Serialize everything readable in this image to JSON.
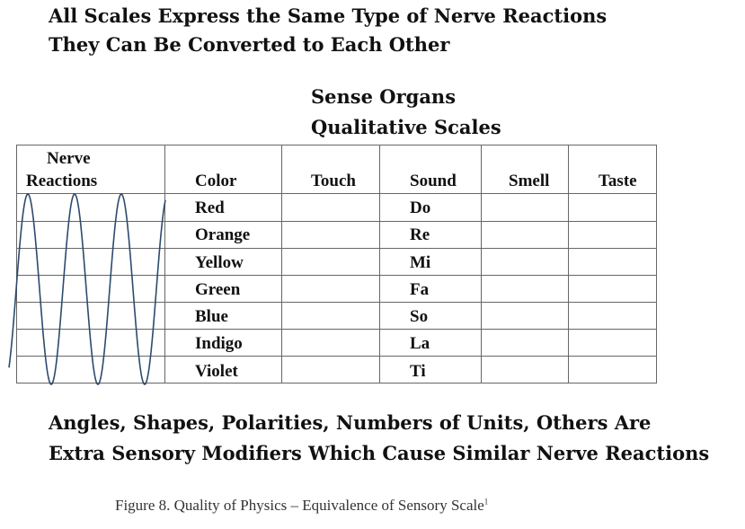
{
  "headings": [
    "All Scales Express the Same Type of Nerve Reactions",
    "They Can Be Converted to Each Other"
  ],
  "scales_title": [
    "Sense Organs",
    "Qualitative Scales"
  ],
  "table": {
    "nerve_header": [
      "Nerve",
      "Reactions"
    ],
    "columns": [
      "Color",
      "Touch",
      "Sound",
      "Smell",
      "Taste"
    ],
    "rows": [
      {
        "color": "Red",
        "sound": "Do"
      },
      {
        "color": "Orange",
        "sound": "Re"
      },
      {
        "color": "Yellow",
        "sound": "Mi"
      },
      {
        "color": "Green",
        "sound": "Fa"
      },
      {
        "color": "Blue",
        "sound": "So"
      },
      {
        "color": "Indigo",
        "sound": "La"
      },
      {
        "color": "Violet",
        "sound": "Ti"
      }
    ]
  },
  "wave_color": "#2c4a6e",
  "footer": [
    "Angles, Shapes, Polarities, Numbers of Units, Others Are",
    "Extra Sensory Modifiers Which Cause Similar Nerve Reactions"
  ],
  "caption": "Figure 8.  Quality of Physics – Equivalence of Sensory Scale"
}
